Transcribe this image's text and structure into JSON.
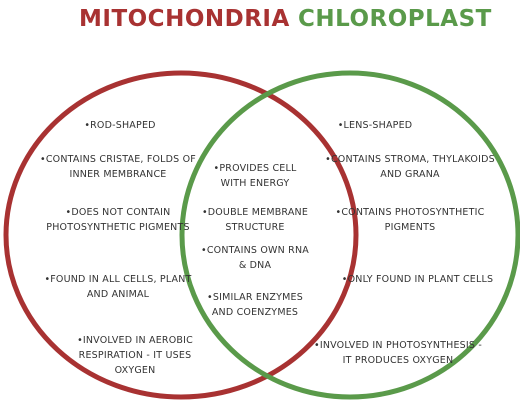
{
  "titles": {
    "left": "MITOCHONDRIA",
    "right": "CHLOROPLAST",
    "left_color": "#a83232",
    "right_color": "#5a9a4a"
  },
  "left_only": [
    [
      "•ROD-SHAPED"
    ],
    [
      "•CONTAINS CRISTAE, FOLDS OF",
      "INNER MEMBRANCE"
    ],
    [
      "•DOES NOT CONTAIN",
      "PHOTOSYNTHETIC PIGMENTS"
    ],
    [
      "•FOUND IN ALL CELLS, PLANT",
      "AND ANIMAL"
    ],
    [
      "•INVOLVED IN AEROBIC",
      "RESPIRATION - IT USES",
      "OXYGEN"
    ]
  ],
  "shared": [
    [
      "•PROVIDES CELL",
      "WITH ENERGY"
    ],
    [
      "•DOUBLE MEMBRANE",
      "STRUCTURE"
    ],
    [
      "•CONTAINS OWN RNA",
      "& DNA"
    ],
    [
      "•SIMILAR ENZYMES",
      "AND COENZYMES"
    ]
  ],
  "right_only": [
    [
      "•LENS-SHAPED"
    ],
    [
      "•CONTAINS STROMA, THYLAKOIDS",
      "AND GRANA"
    ],
    [
      "•CONTAINS PHOTOSYNTHETIC",
      "PIGMENTS"
    ],
    [
      "•ONLY FOUND IN PLANT CELLS"
    ],
    [
      "•INVOLVED IN PHOTOSYNTHESIS -",
      "IT PRODUCES OXYGEN"
    ]
  ]
}
